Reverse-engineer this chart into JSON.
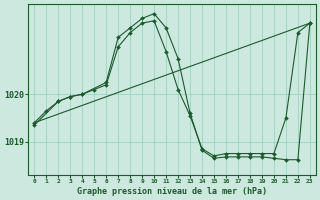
{
  "title": "Graphe pression niveau de la mer (hPa)",
  "bg_color": "#cce8df",
  "grid_color": "#99ccbb",
  "line_color": "#1a5c2a",
  "xlim": [
    -0.5,
    23.5
  ],
  "ylim": [
    1018.3,
    1021.9
  ],
  "yticks": [
    1019,
    1020
  ],
  "xticks": [
    0,
    1,
    2,
    3,
    4,
    5,
    6,
    7,
    8,
    9,
    10,
    11,
    12,
    13,
    14,
    15,
    16,
    17,
    18,
    19,
    20,
    21,
    22,
    23
  ],
  "series": [
    {
      "x": [
        0,
        23
      ],
      "y": [
        1019.4,
        1021.5
      ],
      "has_markers": false
    },
    {
      "x": [
        0,
        1,
        2,
        3,
        4,
        5,
        6,
        7,
        8,
        9,
        10,
        11,
        12,
        13,
        14,
        15,
        16,
        17,
        18,
        19,
        20,
        21,
        22,
        23
      ],
      "y": [
        1019.4,
        1019.65,
        1019.85,
        1019.95,
        1020.0,
        1020.1,
        1020.2,
        1021.0,
        1021.3,
        1021.5,
        1021.55,
        1020.9,
        1020.1,
        1019.55,
        1018.85,
        1018.7,
        1018.75,
        1018.75,
        1018.75,
        1018.75,
        1018.75,
        1019.5,
        1021.3,
        1021.5
      ],
      "has_markers": true
    },
    {
      "x": [
        0,
        2,
        3,
        4,
        6,
        7,
        8,
        9,
        10,
        11,
        12,
        13,
        14,
        15,
        16,
        17,
        18,
        19,
        20,
        21,
        22,
        23
      ],
      "y": [
        1019.35,
        1019.85,
        1019.95,
        1020.0,
        1020.25,
        1021.2,
        1021.4,
        1021.6,
        1021.7,
        1021.4,
        1020.75,
        1019.6,
        1018.82,
        1018.65,
        1018.68,
        1018.68,
        1018.68,
        1018.68,
        1018.65,
        1018.62,
        1018.62,
        1021.5
      ],
      "has_markers": true
    }
  ]
}
